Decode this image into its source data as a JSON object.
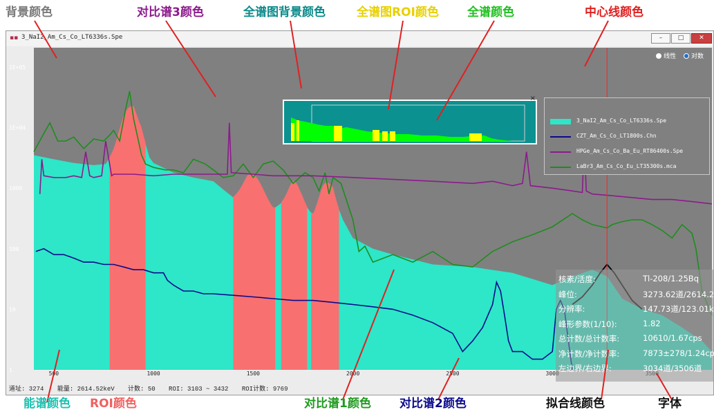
{
  "callouts": {
    "background_color": "背景颜色",
    "compare3_color": "对比谱3颜色",
    "overview_bg_color": "全谱图背景颜色",
    "overview_roi_color": "全谱图ROI颜色",
    "full_spectrum_color": "全谱颜色",
    "center_line_color": "中心线颜色",
    "spectrum_color": "能谱颜色",
    "roi_color": "ROI颜色",
    "compare1_color": "对比谱1颜色",
    "compare2_color": "对比谱2颜色",
    "fit_line_color": "拟合线颜色",
    "font": "字体"
  },
  "window": {
    "title": "3_NaI2_Am_Cs_Co_LT6336s.Spe",
    "min_label": "–",
    "max_label": "□",
    "close_label": "✕"
  },
  "scale_options": {
    "linear": "线性",
    "log": "对数",
    "selected": "log"
  },
  "legend": [
    {
      "label": "3_NaI2_Am_Cs_Co_LT6336s.Spe",
      "color": "#2ee6c8",
      "style": "fill"
    },
    {
      "label": "CZT_Am_Cs_Co_LT1800s.Chn",
      "color": "#0a0a8c",
      "style": "line"
    },
    {
      "label": "HPGe_Am_Cs_Co_Ba_Eu_RT86400s.Spe",
      "color": "#8c1a8c",
      "style": "line"
    },
    {
      "label": "LaBr3_Am_Cs_Co_Eu_LT35300s.mca",
      "color": "#1e8c1e",
      "style": "line"
    }
  ],
  "info_panel": [
    {
      "key": "核素/活度:",
      "value": "Tl-208/1.25Bq"
    },
    {
      "key": "峰位:",
      "value": "3273.62道/2614.20keV"
    },
    {
      "key": "分辨率:",
      "value": "147.73道/123.01keV"
    },
    {
      "key": "峰形参数(1/10):",
      "value": "1.82"
    },
    {
      "key": "总计数/总计数率:",
      "value": "10610/1.67cps"
    },
    {
      "key": "净计数/净计数率:",
      "value": "7873±278/1.24cps"
    },
    {
      "key": "左边界/右边界:",
      "value": "3034道/3506道"
    }
  ],
  "status_bar": {
    "address": "道址: 3274",
    "energy": "能量: 2614.52keV",
    "count": "计数: 50",
    "roi": "ROI: 3103 ~ 3432",
    "roi_count": "ROI计数: 9769"
  },
  "minimap": {
    "close_label": "×",
    "bg_color": "#0c9191",
    "spectrum_color": "#00ff00",
    "roi_color": "#ffff00"
  },
  "colors": {
    "plot_bg": "#808080",
    "spectrum": "#2ee6c8",
    "roi": "#f87070",
    "compare1": "#1e8c1e",
    "compare2": "#0a0a8c",
    "compare3": "#8c1a8c",
    "center_line": "#ff2020",
    "fit_line": "#000000",
    "callout_red": "#e02020"
  },
  "chart_data": {
    "type": "area",
    "title": "",
    "xlabel": "",
    "ylabel": "",
    "y_scale": "log",
    "xlim": [
      400,
      3800
    ],
    "ylim": [
      1,
      100000
    ],
    "y_ticks": [
      "1",
      "10",
      "100",
      "1000",
      "1E+04",
      "1E+05"
    ],
    "y_tick_values": [
      1,
      10,
      100,
      1000,
      10000,
      100000
    ],
    "x_ticks": [
      500,
      1000,
      1500,
      2000,
      2500,
      3000,
      3500
    ],
    "center_line_x": 3274,
    "roi_regions": [
      [
        780,
        960
      ],
      [
        1400,
        1610
      ],
      [
        1640,
        1770
      ],
      [
        1790,
        1930
      ]
    ],
    "series": [
      {
        "name": "3_NaI2_Am_Cs_Co_LT6336s.Spe",
        "style": "area",
        "x": [
          400,
          500,
          600,
          700,
          760,
          800,
          850,
          900,
          940,
          980,
          1000,
          1100,
          1200,
          1300,
          1350,
          1400,
          1430,
          1470,
          1500,
          1550,
          1600,
          1650,
          1700,
          1750,
          1800,
          1850,
          1900,
          1950,
          2000,
          2100,
          2200,
          2400,
          2600,
          2800,
          3000,
          3100,
          3200,
          3274,
          3350,
          3450,
          3550,
          3650,
          3750,
          3800
        ],
        "y": [
          3500,
          3000,
          2600,
          2400,
          2500,
          4000,
          9000,
          14000,
          9000,
          3200,
          2600,
          1800,
          1500,
          1300,
          950,
          700,
          800,
          1000,
          900,
          650,
          450,
          600,
          700,
          600,
          350,
          600,
          800,
          300,
          150,
          100,
          80,
          55,
          50,
          40,
          25,
          35,
          45,
          35,
          15,
          10,
          8,
          5,
          3,
          2
        ]
      },
      {
        "name": "LaBr3_Am_Cs_Co_Eu_LT35300s.mca",
        "style": "line",
        "x": [
          400,
          450,
          480,
          520,
          560,
          600,
          650,
          700,
          750,
          780,
          800,
          830,
          860,
          880,
          900,
          940,
          960,
          1000,
          1060,
          1100,
          1150,
          1200,
          1260,
          1300,
          1350,
          1400,
          1450,
          1500,
          1550,
          1600,
          1650,
          1700,
          1760,
          1800,
          1830,
          1860,
          1880,
          1900,
          1940,
          2000,
          2030,
          2060,
          2100,
          2200,
          2300,
          2400,
          2500,
          2600,
          2700,
          2800,
          2900,
          3000,
          3100,
          3150,
          3200,
          3274,
          3300,
          3350,
          3400,
          3450,
          3500,
          3550,
          3600,
          3650,
          3700,
          3720,
          3750,
          3800
        ],
        "y": [
          4000,
          8000,
          12000,
          6000,
          6000,
          7000,
          4500,
          6500,
          6000,
          7500,
          9000,
          6000,
          20000,
          40000,
          14000,
          3500,
          2500,
          2200,
          2000,
          2000,
          1800,
          3000,
          2500,
          2000,
          1500,
          1600,
          2500,
          1500,
          2500,
          2800,
          2000,
          1200,
          1800,
          1500,
          900,
          1800,
          800,
          1500,
          1200,
          300,
          90,
          110,
          60,
          80,
          60,
          90,
          55,
          50,
          90,
          130,
          170,
          230,
          380,
          300,
          250,
          220,
          250,
          280,
          300,
          300,
          250,
          200,
          150,
          250,
          180,
          100,
          20,
          8
        ]
      },
      {
        "name": "HPGe_Am_Cs_Co_Ba_Eu_RT86400s.Spe",
        "style": "line",
        "x": [
          430,
          440,
          450,
          500,
          560,
          600,
          640,
          660,
          680,
          700,
          740,
          760,
          790,
          800,
          900,
          1000,
          1100,
          1200,
          1300,
          1370,
          1380,
          1390,
          1500,
          1600,
          1800,
          2000,
          2200,
          2400,
          2600,
          2700,
          2800,
          2850,
          2870,
          2890,
          3000,
          3100,
          3150,
          3160,
          3170,
          3200,
          3300,
          3400,
          3500,
          3600,
          3700,
          3800
        ],
        "y": [
          800,
          3000,
          1600,
          1500,
          1500,
          1600,
          1500,
          4000,
          1600,
          1500,
          1600,
          6000,
          1600,
          1700,
          1700,
          1600,
          1700,
          1700,
          1700,
          1700,
          12000,
          1800,
          1700,
          1600,
          1600,
          1500,
          1400,
          1300,
          1200,
          1300,
          1100,
          1200,
          4000,
          1100,
          1000,
          900,
          850,
          6000,
          900,
          800,
          750,
          700,
          650,
          650,
          600,
          550
        ]
      },
      {
        "name": "CZT_Am_Cs_Co_LT1800s.Chn",
        "style": "line",
        "x": [
          410,
          450,
          500,
          550,
          600,
          650,
          700,
          750,
          800,
          850,
          900,
          950,
          1000,
          1050,
          1070,
          1100,
          1150,
          1200,
          1250,
          1300,
          1400,
          1500,
          1600,
          1700,
          1800,
          1900,
          2000,
          2100,
          2200,
          2300,
          2400,
          2500,
          2550,
          2600,
          2650,
          2700,
          2720,
          2740,
          2760,
          2780,
          2800,
          2850,
          2900,
          2950,
          3000,
          3020,
          3040,
          3060,
          3080,
          3100
        ],
        "y": [
          90,
          100,
          80,
          80,
          70,
          60,
          60,
          55,
          55,
          50,
          45,
          45,
          40,
          40,
          30,
          25,
          20,
          20,
          18,
          18,
          17,
          16,
          15,
          14,
          14,
          13,
          12,
          11,
          10,
          8,
          6,
          4,
          2,
          3,
          5,
          12,
          28,
          20,
          8,
          3,
          2,
          2,
          1.5,
          1.5,
          2,
          10,
          14,
          10,
          3,
          1
        ]
      }
    ],
    "fit_curve": {
      "x": [
        3100,
        3150,
        3200,
        3240,
        3274,
        3310,
        3350,
        3400,
        3450
      ],
      "y": [
        12,
        16,
        25,
        40,
        55,
        40,
        25,
        14,
        10
      ]
    }
  }
}
